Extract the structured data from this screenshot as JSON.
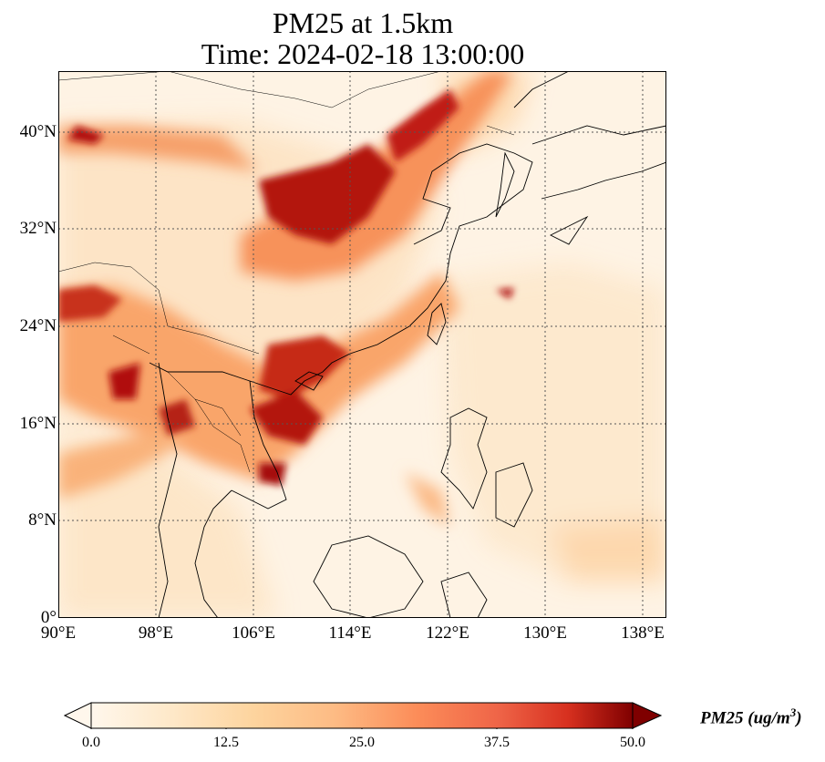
{
  "title": {
    "line1": "PM25 at 1.5km",
    "line2": "Time: 2024-02-18 13:00:00"
  },
  "map": {
    "region": "East and Southeast Asia",
    "lon_range": [
      90,
      140
    ],
    "lat_range": [
      0,
      45
    ],
    "gridlines": "dotted",
    "lat_ticks": [
      "0°",
      "8°N",
      "16°N",
      "24°N",
      "32°N",
      "40°N"
    ],
    "lon_ticks": [
      "90°E",
      "98°E",
      "106°E",
      "114°E",
      "122°E",
      "130°E",
      "138°E"
    ],
    "colormap": "OrRd",
    "colors": {
      "low": "#fff7ec",
      "mid": "#fc8d59",
      "high": "#7f0000"
    }
  },
  "colorbar": {
    "label": "PM25 (ug/m",
    "label_sup": "3",
    "label_close": ")",
    "min": 0.0,
    "max": 50.0,
    "ticks": [
      "0.0",
      "12.5",
      "25.0",
      "37.5",
      "50.0"
    ],
    "extend": "both"
  }
}
